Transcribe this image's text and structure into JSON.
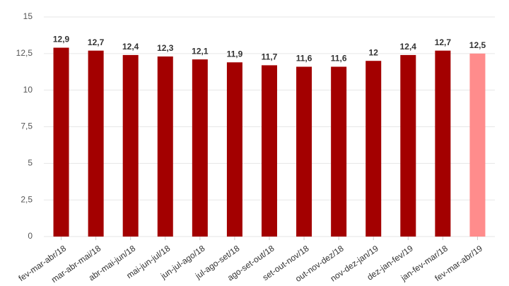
{
  "chart_data": {
    "type": "bar",
    "categories": [
      "fev-mar-abr/18",
      "mar-abr-mai/18",
      "abr-mai-jun/18",
      "mai-jun-jul/18",
      "jun-jul-ago/18",
      "jul-ago-set/18",
      "ago-set-out/18",
      "set-out-nov/18",
      "out-nov-dez/18",
      "nov-dez-jan/19",
      "dez-jan-fev/19",
      "jan-fev-mar/18",
      "fev-mar-abr/19"
    ],
    "values": [
      12.9,
      12.7,
      12.4,
      12.3,
      12.1,
      11.9,
      11.7,
      11.6,
      11.6,
      12,
      12.4,
      12.7,
      12.5
    ],
    "value_labels": [
      "12,9",
      "12,7",
      "12,4",
      "12,3",
      "12,1",
      "11,9",
      "11,7",
      "11,6",
      "11,6",
      "12",
      "12,4",
      "12,7",
      "12,5"
    ],
    "colors": [
      "#a30000",
      "#a30000",
      "#a30000",
      "#a30000",
      "#a30000",
      "#a30000",
      "#a30000",
      "#a30000",
      "#a30000",
      "#a30000",
      "#a30000",
      "#a30000",
      "#ff8c8c"
    ],
    "ylim": [
      0,
      15
    ],
    "yticks": [
      0,
      {
        "value": 2.5,
        "label": "2,5"
      },
      5,
      {
        "value": 7.5,
        "label": "7,5"
      },
      10,
      {
        "value": 12.5,
        "label": "12,5"
      },
      15
    ],
    "grid": true
  }
}
